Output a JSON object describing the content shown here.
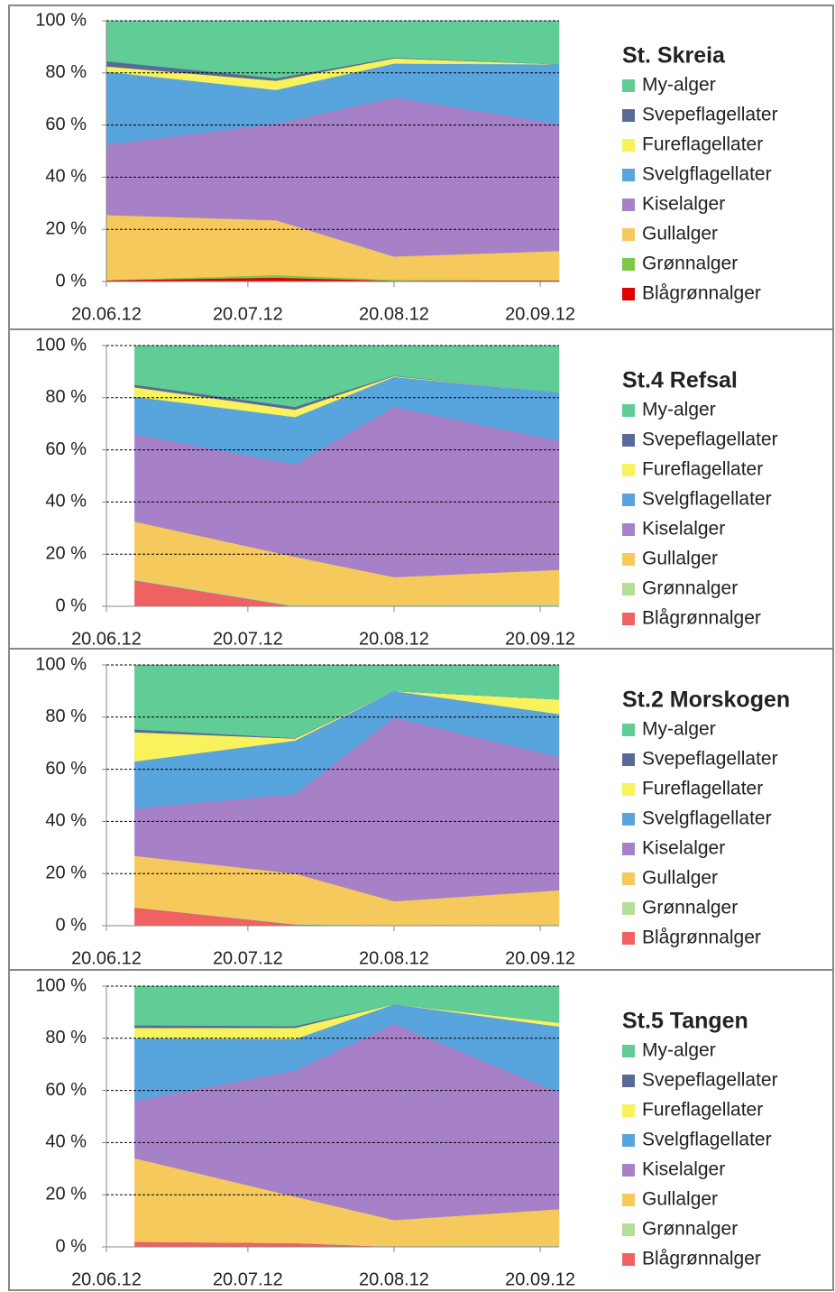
{
  "chart_data": [
    {
      "type": "stacked-area",
      "title": "St. Skreia",
      "x": [
        "20.06.12",
        "26.07.12",
        "20.08.12",
        "24.09.12"
      ],
      "xlim": [
        "20.06.12",
        "24.09.12"
      ],
      "xticks": [
        "20.06.12",
        "20.07.12",
        "20.08.12",
        "20.09.12"
      ],
      "ylim": [
        0,
        100
      ],
      "yticks": [
        {
          "value": 0,
          "label": "0 %"
        },
        {
          "value": 20,
          "label": "20 %"
        },
        {
          "value": 40,
          "label": "40 %"
        },
        {
          "value": 60,
          "label": "60 %"
        },
        {
          "value": 80,
          "label": "80 %"
        },
        {
          "value": 100,
          "label": "100 %"
        }
      ],
      "grid": true,
      "series": [
        {
          "name": "My-alger",
          "color": "#5fcd95",
          "values": [
            15.5,
            22,
            14.1,
            16.7
          ]
        },
        {
          "name": "Svepeflagellater",
          "color": "#5a6a98",
          "values": [
            2,
            1,
            0.3,
            0
          ]
        },
        {
          "name": "Fureflagellater",
          "color": "#f8f25c",
          "values": [
            2,
            3.5,
            2,
            0
          ]
        },
        {
          "name": "Svelgflagellater",
          "color": "#58a4dc",
          "values": [
            28,
            13,
            13,
            23
          ]
        },
        {
          "name": "Kiselalger",
          "color": "#a781c8",
          "values": [
            27,
            37,
            61,
            48.6
          ]
        },
        {
          "name": "Gullalger",
          "color": "#f6c95c",
          "values": [
            25,
            21,
            9,
            11.2
          ]
        },
        {
          "name": "Grønnalger",
          "color": "#7cc84a",
          "values": [
            0,
            1,
            0.3,
            0
          ]
        },
        {
          "name": "Blågrønnalger",
          "color": "#e00000",
          "values": [
            0.5,
            1.5,
            0.3,
            0.5
          ]
        }
      ]
    },
    {
      "type": "stacked-area",
      "title": "St.4 Refsal",
      "x": [
        "26.06.12",
        "30.07.12",
        "20.08.12",
        "24.09.12"
      ],
      "xlim": [
        "20.06.12",
        "24.09.12"
      ],
      "xticks": [
        "20.06.12",
        "20.07.12",
        "20.08.12",
        "20.09.12"
      ],
      "ylim": [
        0,
        100
      ],
      "yticks": [
        {
          "value": 0,
          "label": "0 %"
        },
        {
          "value": 20,
          "label": "20 %"
        },
        {
          "value": 40,
          "label": "40 %"
        },
        {
          "value": 60,
          "label": "60 %"
        },
        {
          "value": 80,
          "label": "80 %"
        },
        {
          "value": 100,
          "label": "100 %"
        }
      ],
      "grid": true,
      "series": [
        {
          "name": "My-alger",
          "color": "#5fcd95",
          "values": [
            15,
            23.5,
            11.5,
            18
          ]
        },
        {
          "name": "Svepeflagellater",
          "color": "#5a6a98",
          "values": [
            1,
            1.1,
            0.2,
            0
          ]
        },
        {
          "name": "Fureflagellater",
          "color": "#f8f25c",
          "values": [
            3.6,
            2.8,
            0.3,
            0
          ]
        },
        {
          "name": "Svelgflagellater",
          "color": "#58a4dc",
          "values": [
            14.4,
            18.2,
            11.5,
            18.5
          ]
        },
        {
          "name": "Kiselalger",
          "color": "#a781c8",
          "values": [
            33.5,
            35.4,
            65.3,
            49.5
          ]
        },
        {
          "name": "Gullalger",
          "color": "#f6c95c",
          "values": [
            22,
            18.5,
            10.7,
            13
          ]
        },
        {
          "name": "Grønnalger",
          "color": "#b5de98",
          "values": [
            0.5,
            0.5,
            0.5,
            1
          ]
        },
        {
          "name": "Blågrønnalger",
          "color": "#f06262",
          "values": [
            10,
            0,
            0,
            0
          ]
        }
      ]
    },
    {
      "type": "stacked-area",
      "title": "St.2 Morskogen",
      "x": [
        "26.06.12",
        "30.07.12",
        "20.08.12",
        "24.09.12"
      ],
      "xlim": [
        "20.06.12",
        "24.09.12"
      ],
      "xticks": [
        "20.06.12",
        "20.07.12",
        "20.08.12",
        "20.09.12"
      ],
      "ylim": [
        0,
        100
      ],
      "yticks": [
        {
          "value": 0,
          "label": "0 %"
        },
        {
          "value": 20,
          "label": "20 %"
        },
        {
          "value": 40,
          "label": "40 %"
        },
        {
          "value": 60,
          "label": "60 %"
        },
        {
          "value": 80,
          "label": "80 %"
        },
        {
          "value": 100,
          "label": "100 %"
        }
      ],
      "grid": true,
      "series": [
        {
          "name": "My-alger",
          "color": "#5fcd95",
          "values": [
            24.7,
            28,
            10,
            13.2
          ]
        },
        {
          "name": "Svepeflagellater",
          "color": "#5a6a98",
          "values": [
            1.1,
            0.2,
            0,
            0
          ]
        },
        {
          "name": "Fureflagellater",
          "color": "#f8f25c",
          "values": [
            11.2,
            0.8,
            0,
            5.6
          ]
        },
        {
          "name": "Svelgflagellater",
          "color": "#58a4dc",
          "values": [
            18,
            20.5,
            10.2,
            16.4
          ]
        },
        {
          "name": "Kiselalger",
          "color": "#a781c8",
          "values": [
            18.2,
            30.5,
            70.4,
            51.2
          ]
        },
        {
          "name": "Gullalger",
          "color": "#f6c95c",
          "values": [
            19.8,
            19.2,
            9.1,
            13.1
          ]
        },
        {
          "name": "Grønnalger",
          "color": "#b5de98",
          "values": [
            0,
            0.3,
            0.3,
            0.5
          ]
        },
        {
          "name": "Blågrønnalger",
          "color": "#f06262",
          "values": [
            7,
            0.5,
            0,
            0
          ]
        }
      ]
    },
    {
      "type": "stacked-area",
      "title": "St.5 Tangen",
      "x": [
        "26.06.12",
        "30.07.12",
        "20.08.12",
        "24.09.12"
      ],
      "xlim": [
        "20.06.12",
        "24.09.12"
      ],
      "xticks": [
        "20.06.12",
        "20.07.12",
        "20.08.12",
        "20.09.12"
      ],
      "ylim": [
        0,
        100
      ],
      "yticks": [
        {
          "value": 0,
          "label": "0 %"
        },
        {
          "value": 20,
          "label": "20 %"
        },
        {
          "value": 40,
          "label": "40 %"
        },
        {
          "value": 60,
          "label": "60 %"
        },
        {
          "value": 80,
          "label": "80 %"
        },
        {
          "value": 100,
          "label": "100 %"
        }
      ],
      "grid": true,
      "series": [
        {
          "name": "My-alger",
          "color": "#5fcd95",
          "values": [
            15,
            15.3,
            6.9,
            14
          ]
        },
        {
          "name": "Svepeflagellater",
          "color": "#5a6a98",
          "values": [
            1,
            0.7,
            0,
            0
          ]
        },
        {
          "name": "Fureflagellater",
          "color": "#f8f25c",
          "values": [
            4,
            4.3,
            0,
            1.5
          ]
        },
        {
          "name": "Svelgflagellater",
          "color": "#58a4dc",
          "values": [
            24,
            12.1,
            7.6,
            25.2
          ]
        },
        {
          "name": "Kiselalger",
          "color": "#a781c8",
          "values": [
            22,
            48.3,
            75.2,
            44.8
          ]
        },
        {
          "name": "Gullalger",
          "color": "#f6c95c",
          "values": [
            32,
            17.8,
            10,
            14
          ]
        },
        {
          "name": "Grønnalger",
          "color": "#b5de98",
          "values": [
            0,
            0,
            0.3,
            0.5
          ]
        },
        {
          "name": "Blågrønnalger",
          "color": "#f06262",
          "values": [
            2,
            1.5,
            0,
            0
          ]
        }
      ]
    }
  ]
}
